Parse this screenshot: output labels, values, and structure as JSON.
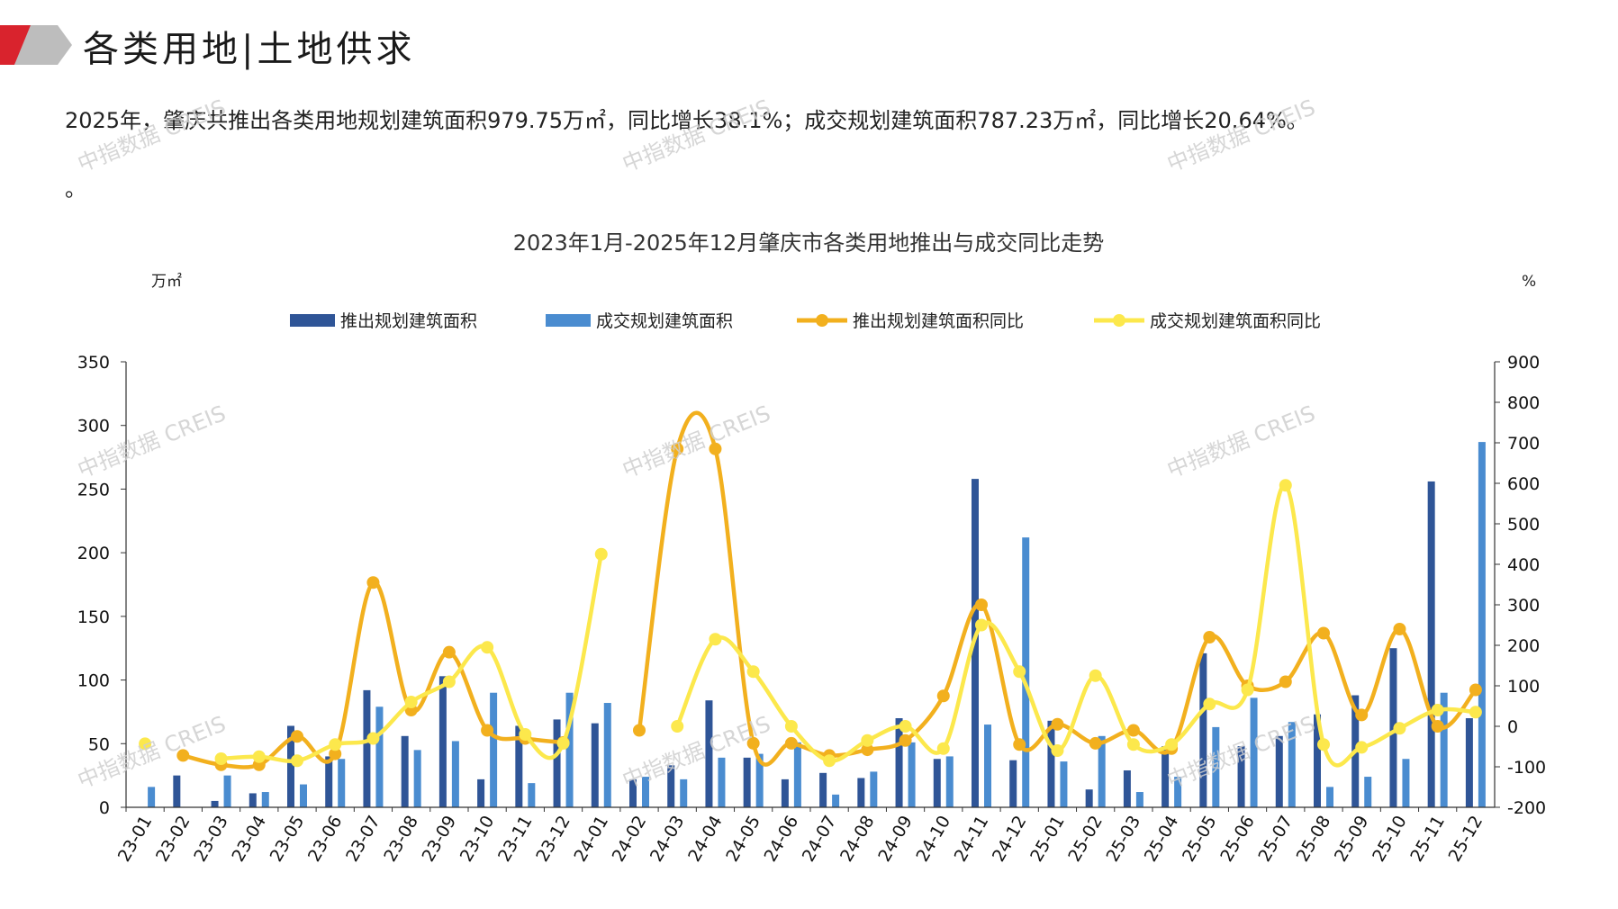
{
  "header": {
    "title": "各类用地|土地供求"
  },
  "summary": {
    "text": "2025年，肇庆共推出各类用地规划建筑面积979.75万㎡，同比增长38.1%；成交规划建筑面积787.23万㎡，同比增长20.64%。"
  },
  "trailing": {
    "text": "。"
  },
  "watermark": {
    "text": "中指数据 CREIS"
  },
  "colors": {
    "supply_bar": "#2F5597",
    "deal_bar": "#4A8CD0",
    "supply_yoy": "#F2B01E",
    "deal_yoy": "#FCE84C",
    "logo_red": "#D9232D",
    "logo_gray": "#BDBDBD"
  },
  "chart_data": {
    "type": "bar+line",
    "title": "2023年1月-2025年12月肇庆市各类用地推出与成交同比走势",
    "y_left_unit": "万㎡",
    "y_right_unit": "%",
    "y_left_lim": [
      0,
      350
    ],
    "y_left_ticks": [
      0,
      50,
      100,
      150,
      200,
      250,
      300,
      350
    ],
    "y_right_lim": [
      -200,
      900
    ],
    "y_right_ticks": [
      -200,
      -100,
      0,
      100,
      200,
      300,
      400,
      500,
      600,
      700,
      800,
      900
    ],
    "legend_position": "top",
    "categories": [
      "23-01",
      "23-02",
      "23-03",
      "23-04",
      "23-05",
      "23-06",
      "23-07",
      "23-08",
      "23-09",
      "23-10",
      "23-11",
      "23-12",
      "24-01",
      "24-02",
      "24-03",
      "24-04",
      "24-05",
      "24-06",
      "24-07",
      "24-08",
      "24-09",
      "24-10",
      "24-11",
      "24-12",
      "25-01",
      "25-02",
      "25-03",
      "25-04",
      "25-05",
      "25-06",
      "25-07",
      "25-08",
      "25-09",
      "25-10",
      "25-11",
      "25-12"
    ],
    "series": [
      {
        "name": "推出规划建筑面积",
        "type": "bar",
        "axis": "left",
        "values": [
          0,
          25,
          5,
          11,
          64,
          40,
          92,
          56,
          103,
          22,
          64,
          69,
          66,
          22,
          33,
          84,
          39,
          22,
          27,
          23,
          70,
          38,
          258,
          37,
          68,
          14,
          29,
          48,
          121,
          48,
          56,
          73,
          88,
          125,
          256,
          70
        ]
      },
      {
        "name": "成交规划建筑面积",
        "type": "bar",
        "axis": "left",
        "values": [
          16,
          0,
          25,
          12,
          18,
          38,
          79,
          45,
          52,
          90,
          19,
          90,
          82,
          24,
          22,
          39,
          42,
          51,
          10,
          28,
          51,
          40,
          65,
          212,
          36,
          56,
          12,
          24,
          63,
          86,
          67,
          16,
          24,
          38,
          90,
          287
        ]
      },
      {
        "name": "推出规划建筑面积同比",
        "type": "line",
        "axis": "right",
        "values": [
          null,
          -72,
          -95,
          -95,
          -25,
          -68,
          355,
          40,
          183,
          -10,
          -30,
          -40,
          null,
          -10,
          685,
          685,
          -42,
          -42,
          -72,
          -58,
          -35,
          75,
          300,
          -45,
          5,
          -42,
          -10,
          -55,
          220,
          100,
          110,
          230,
          28,
          240,
          0,
          90
        ]
      },
      {
        "name": "成交规划建筑面积同比",
        "type": "line",
        "axis": "right",
        "values": [
          -43,
          null,
          -80,
          -75,
          -85,
          -45,
          -30,
          60,
          110,
          195,
          -20,
          -42,
          425,
          null,
          0,
          215,
          135,
          0,
          -85,
          -35,
          0,
          -55,
          250,
          135,
          -60,
          125,
          -45,
          -45,
          55,
          90,
          595,
          -45,
          -52,
          -5,
          40,
          35
        ]
      }
    ]
  }
}
